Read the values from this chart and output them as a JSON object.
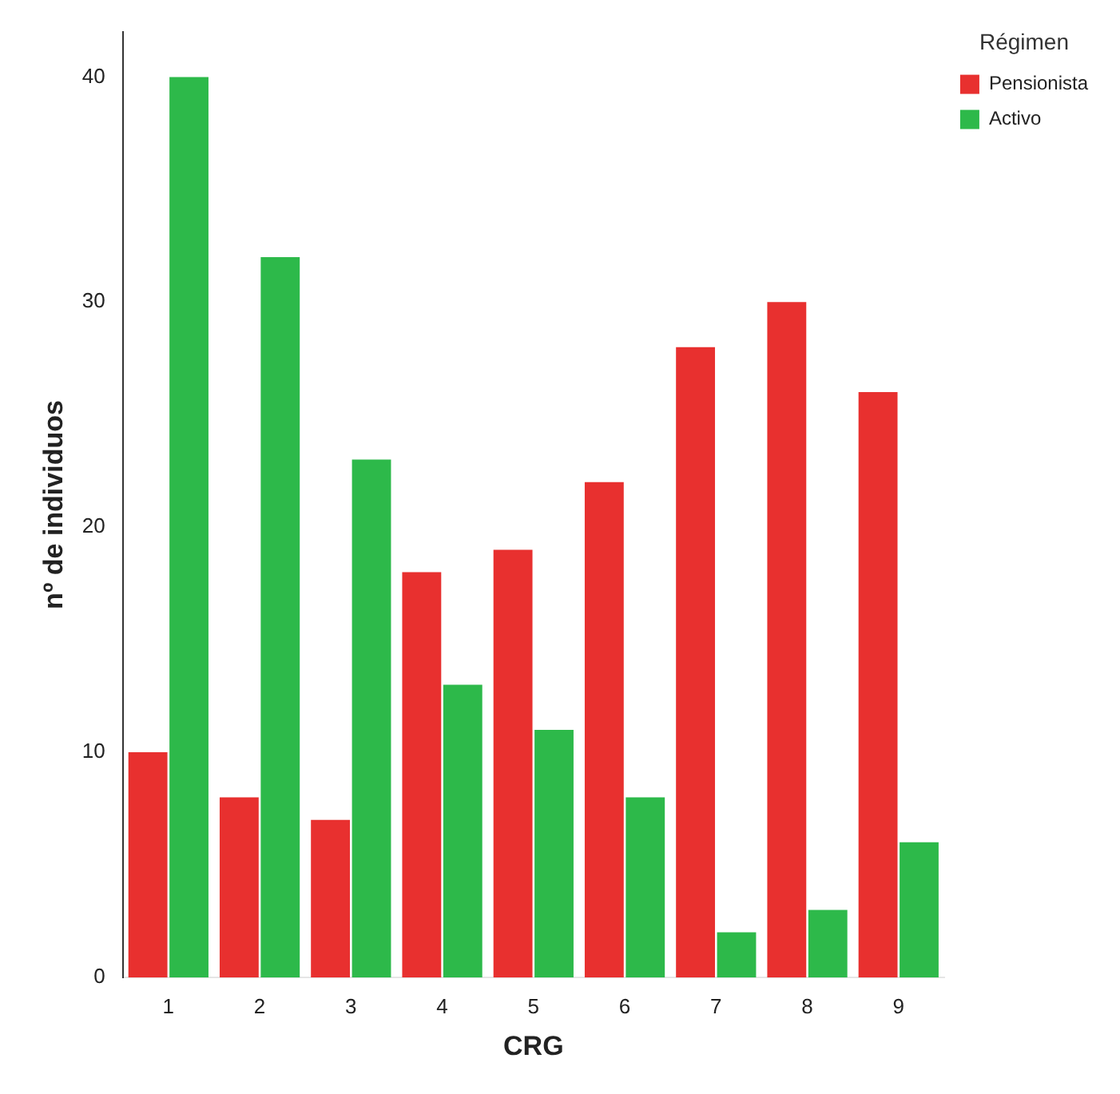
{
  "chart_data": {
    "type": "bar",
    "xlabel": "CRG",
    "ylabel": "nº de individuos",
    "legend_title": "Régimen",
    "categories": [
      "1",
      "2",
      "3",
      "4",
      "5",
      "6",
      "7",
      "8",
      "9"
    ],
    "series": [
      {
        "name": "Pensionista",
        "color": "#e8302f",
        "values": [
          10,
          8,
          7,
          18,
          19,
          22,
          28,
          30,
          26
        ]
      },
      {
        "name": "Activo",
        "color": "#2db94a",
        "values": [
          40,
          32,
          23,
          13,
          11,
          8,
          2,
          3,
          6
        ]
      }
    ],
    "ylim": [
      0,
      42
    ],
    "yticks": [
      0,
      10,
      20,
      30,
      40
    ],
    "grid": false,
    "legend": "top right"
  }
}
